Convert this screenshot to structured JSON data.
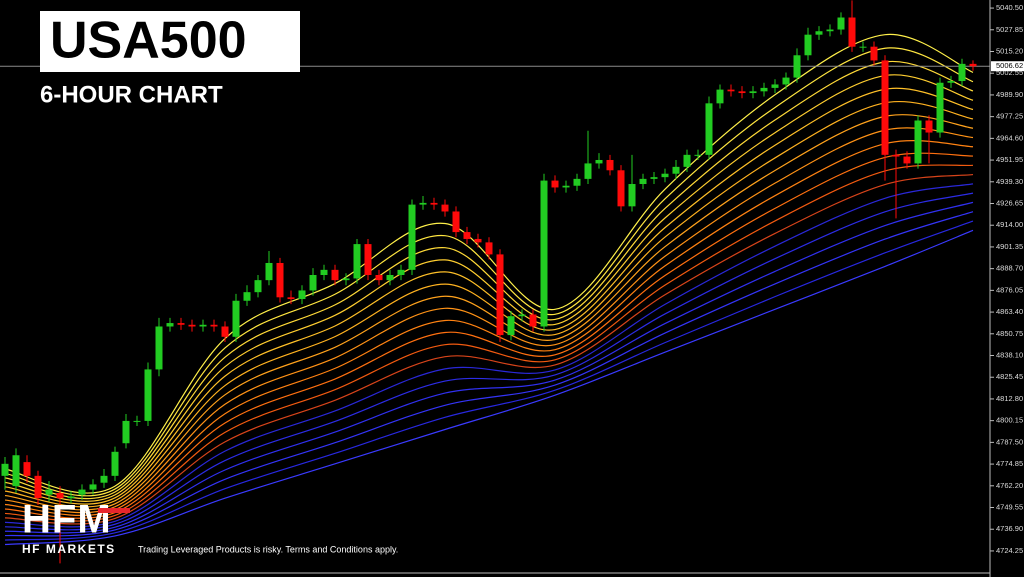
{
  "chart_data": {
    "type": "candlestick",
    "title": "USA500",
    "subtitle": "6-HOUR CHART",
    "open": [
      4768,
      4762,
      4776,
      4768,
      4757,
      4758,
      4755,
      4757,
      4760,
      4764,
      4768,
      4787,
      4800,
      4800,
      4830,
      4855,
      4857,
      4856,
      4855,
      4856,
      4855,
      4849,
      4870,
      4875,
      4882,
      4892,
      4872,
      4871,
      4876,
      4885,
      4888,
      4882,
      4883,
      4903,
      4885,
      4882,
      4885,
      4888,
      4926,
      4927,
      4926,
      4922,
      4910,
      4906,
      4904,
      4897,
      4850,
      4861,
      4862,
      4855,
      4940,
      4936,
      4937,
      4941,
      4950,
      4952,
      4946,
      4925,
      4938,
      4941,
      4942,
      4944,
      4948,
      4955,
      4955,
      4985,
      4993,
      4992,
      4991,
      4992,
      4994,
      4996,
      5000,
      5013,
      5025,
      5027,
      5028,
      5035,
      5018,
      5018,
      5010,
      4955,
      4954,
      4950,
      4975,
      4968,
      4997,
      4998,
      5008
    ],
    "high": [
      4779,
      4784,
      4780,
      4771,
      4765,
      4762,
      4759,
      4763,
      4766,
      4772,
      4785,
      4804,
      4803,
      4834,
      4860,
      4860,
      4860,
      4859,
      4859,
      4859,
      4858,
      4874,
      4879,
      4885,
      4899,
      4895,
      4876,
      4879,
      4889,
      4891,
      4891,
      4886,
      4906,
      4906,
      4888,
      4888,
      4891,
      4929,
      4931,
      4930,
      4929,
      4925,
      4913,
      4909,
      4907,
      4900,
      4864,
      4865,
      4865,
      4944,
      4943,
      4940,
      4944,
      4969,
      4956,
      4955,
      4949,
      4955,
      4944,
      4945,
      4947,
      4952,
      4958,
      4958,
      4989,
      4996,
      4996,
      4995,
      4995,
      4997,
      4999,
      5003,
      5017,
      5029,
      5030,
      5031,
      5038,
      5045,
      5021,
      5021,
      5013,
      4958,
      4957,
      4978,
      4978,
      5000,
      5001,
      5011,
      5010
    ],
    "low": [
      4760,
      4758,
      4764,
      4751,
      4753,
      4717,
      4752,
      4754,
      4757,
      4761,
      4765,
      4784,
      4797,
      4797,
      4826,
      4852,
      4853,
      4852,
      4852,
      4852,
      4846,
      4846,
      4867,
      4872,
      4879,
      4869,
      4868,
      4868,
      4873,
      4882,
      4879,
      4879,
      4880,
      4882,
      4879,
      4879,
      4882,
      4885,
      4923,
      4923,
      4919,
      4907,
      4903,
      4901,
      4894,
      4846,
      4847,
      4858,
      4852,
      4852,
      4933,
      4933,
      4934,
      4938,
      4947,
      4943,
      4922,
      4922,
      4935,
      4938,
      4939,
      4941,
      4945,
      4952,
      4952,
      4982,
      4989,
      4988,
      4988,
      4989,
      4991,
      4993,
      4997,
      5010,
      5022,
      5024,
      5025,
      5015,
      5015,
      5007,
      4940,
      4918,
      4947,
      4947,
      4950,
      4965,
      4994,
      4995,
      5004
    ],
    "close": [
      4775,
      4780,
      4768,
      4755,
      4760,
      4755,
      4756,
      4760,
      4763,
      4768,
      4782,
      4800,
      4800,
      4830,
      4855,
      4857,
      4856,
      4855,
      4856,
      4855,
      4849,
      4870,
      4875,
      4882,
      4892,
      4872,
      4871,
      4876,
      4885,
      4888,
      4882,
      4883,
      4903,
      4885,
      4882,
      4885,
      4888,
      4926,
      4927,
      4926,
      4922,
      4910,
      4906,
      4904,
      4897,
      4850,
      4861,
      4862,
      4855,
      4940,
      4936,
      4937,
      4941,
      4950,
      4952,
      4946,
      4925,
      4938,
      4941,
      4942,
      4944,
      4948,
      4955,
      4955,
      4985,
      4993,
      4992,
      4991,
      4992,
      4994,
      4996,
      5000,
      5013,
      5025,
      5027,
      5028,
      5035,
      5018,
      5018,
      5010,
      4955,
      4954,
      4950,
      4975,
      4968,
      4997,
      4998,
      5008,
      5006.62
    ],
    "up_color": "#22cc22",
    "down_color": "#ff0a0a",
    "ylim": [
      4711.4,
      5045.2
    ],
    "yticks": [
      {
        "value": 5040.5,
        "label": "5040.50"
      },
      5027.85,
      {
        "value": 5015.2,
        "label": "5015.20"
      },
      5002.55,
      {
        "value": 4989.9,
        "label": "4989.90"
      },
      4977.25,
      {
        "value": 4964.6,
        "label": "4964.60"
      },
      4951.95,
      {
        "value": 4939.3,
        "label": "4939.30"
      },
      4926.65,
      {
        "value": 4914,
        "label": "4914.00"
      },
      4901.35,
      {
        "value": 4888.7,
        "label": "4888.70"
      },
      4876.05,
      {
        "value": 4863.4,
        "label": "4863.40"
      },
      4850.75,
      {
        "value": 4838.1,
        "label": "4838.10"
      },
      4825.45,
      {
        "value": 4812.8,
        "label": "4812.80"
      },
      4800.15,
      {
        "value": 4787.5,
        "label": "4787.50"
      },
      4774.85,
      {
        "value": 4762.2,
        "label": "4762.20"
      },
      4749.55,
      {
        "value": 4736.9,
        "label": "4736.90"
      },
      4724.25
    ],
    "current_price": {
      "value": 5006.62,
      "label": "5006.62"
    },
    "ma_x": [
      0,
      10,
      20,
      30,
      40,
      50,
      60,
      70,
      80,
      88
    ],
    "moving_averages": [
      {
        "color": "#fff04a",
        "values": [
          4772,
          4762,
          4848,
          4880,
          4915,
          4865,
          4935,
          4990,
          5025,
          5003
        ]
      },
      {
        "color": "#ffe640",
        "values": [
          4769.4,
          4760.3,
          4842.5,
          4873.8,
          4907.9,
          4862.1,
          4929.4,
          4982.6,
          5017.1,
          4997.6
        ]
      },
      {
        "color": "#ffda38",
        "values": [
          4766.8,
          4758.6,
          4837.1,
          4867.6,
          4900.9,
          4859.1,
          4923.8,
          4975.3,
          5009.1,
          4992.2
        ]
      },
      {
        "color": "#ffce30",
        "values": [
          4764.2,
          4756.9,
          4831.6,
          4861.5,
          4893.8,
          4856.2,
          4918.2,
          4967.9,
          5001.2,
          4986.8
        ]
      },
      {
        "color": "#ffc028",
        "values": [
          4761.6,
          4755.2,
          4826.1,
          4855.3,
          4886.8,
          4853.2,
          4912.6,
          4960.6,
          4993.2,
          4981.4
        ]
      },
      {
        "color": "#ffb220",
        "values": [
          4759.1,
          4753.5,
          4820.6,
          4849.1,
          4879.7,
          4850.3,
          4907.1,
          4953.2,
          4985.3,
          4975.9
        ]
      },
      {
        "color": "#ffa21c",
        "values": [
          4756.5,
          4751.7,
          4815.2,
          4842.9,
          4872.6,
          4847.4,
          4901.5,
          4945.9,
          4977.4,
          4970.5
        ]
      },
      {
        "color": "#ff9216",
        "values": [
          4753.9,
          4750.0,
          4809.7,
          4836.7,
          4865.6,
          4844.4,
          4895.9,
          4938.5,
          4969.4,
          4965.1
        ]
      },
      {
        "color": "#ff8212",
        "values": [
          4751.3,
          4748.3,
          4804.2,
          4830.6,
          4858.5,
          4841.5,
          4890.3,
          4931.2,
          4961.5,
          4959.7
        ]
      },
      {
        "color": "#ff7010",
        "values": [
          4748.7,
          4746.6,
          4798.8,
          4824.4,
          4851.5,
          4838.5,
          4884.7,
          4923.8,
          4953.5,
          4954.3
        ]
      },
      {
        "color": "#f25a10",
        "values": [
          4746.1,
          4744.9,
          4793.3,
          4818.2,
          4844.4,
          4835.6,
          4879.1,
          4916.5,
          4945.6,
          4948.9
        ]
      },
      {
        "color": "#d8441a",
        "values": [
          4743.5,
          4743.2,
          4787.8,
          4812.0,
          4837.4,
          4832.6,
          4873.5,
          4909.2,
          4937.7,
          4943.5
        ]
      },
      {
        "color": "#2a28d8",
        "values": [
          4740.9,
          4741.5,
          4782.4,
          4805.8,
          4830.3,
          4829.7,
          4867.9,
          4901.8,
          4929.7,
          4938.1
        ]
      },
      {
        "color": "#2c2ce6",
        "values": [
          4738.3,
          4739.8,
          4776.9,
          4799.7,
          4823.2,
          4826.8,
          4862.3,
          4894.5,
          4921.8,
          4932.7
        ]
      },
      {
        "color": "#3030f0",
        "values": [
          4735.7,
          4738.1,
          4771.4,
          4793.5,
          4816.2,
          4823.8,
          4856.7,
          4887.1,
          4913.8,
          4927.3
        ]
      },
      {
        "color": "#3434f8",
        "values": [
          4733.2,
          4736.5,
          4766.0,
          4787.3,
          4809.1,
          4820.9,
          4851.2,
          4879.8,
          4905.9,
          4921.9
        ]
      },
      {
        "color": "#2828e0",
        "values": [
          4730.6,
          4734.8,
          4760.5,
          4781.1,
          4802.1,
          4817.9,
          4845.6,
          4872.4,
          4897.9,
          4916.4
        ]
      },
      {
        "color": "#3a3aff",
        "values": [
          4728,
          4733,
          4755,
          4775,
          4795,
          4815,
          4840,
          4865,
          4890,
          4911
        ]
      }
    ]
  },
  "brand": {
    "logo": "HFM",
    "name": "HF MARKETS",
    "disclaimer": "Trading Leveraged Products is risky. Terms and Conditions apply."
  }
}
